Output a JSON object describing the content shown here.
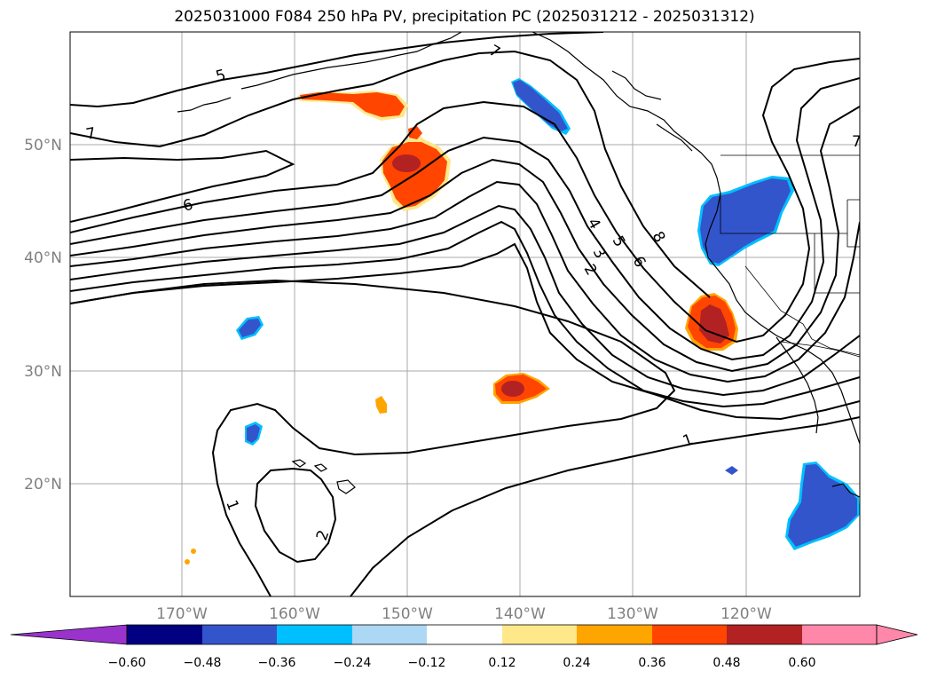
{
  "title": "2025031000 F084 250 hPa PV, precipitation PC (2025031212 - 2025031312)",
  "lat_labels": [
    "50°N",
    "40°N",
    "30°N",
    "20°N"
  ],
  "lon_labels": [
    "170°W",
    "160°W",
    "150°W",
    "140°W",
    "130°W",
    "120°W"
  ],
  "colorbar": {
    "ticks": [
      "−0.60",
      "−0.48",
      "−0.36",
      "−0.24",
      "−0.12",
      "0.12",
      "0.24",
      "0.36",
      "0.48",
      "0.60"
    ],
    "colors": [
      "#9933cc",
      "#000080",
      "#3355cc",
      "#00bfff",
      "#add8f5",
      "#ffffff",
      "#ffe88a",
      "#ffa500",
      "#ff4500",
      "#b22222",
      "#ff88aa",
      "#ff88aa"
    ],
    "colors_note": [
      "under",
      "bin1",
      "bin2",
      "bin3",
      "bin4",
      "bin5",
      "bin6",
      "bin7",
      "bin8",
      "bin9",
      "bin10",
      "over"
    ]
  },
  "contour_labels": [
    "5",
    "7",
    "6",
    "7",
    "4",
    "3",
    "2",
    "5",
    "6",
    "8",
    "1",
    "1",
    "2",
    "7"
  ]
}
